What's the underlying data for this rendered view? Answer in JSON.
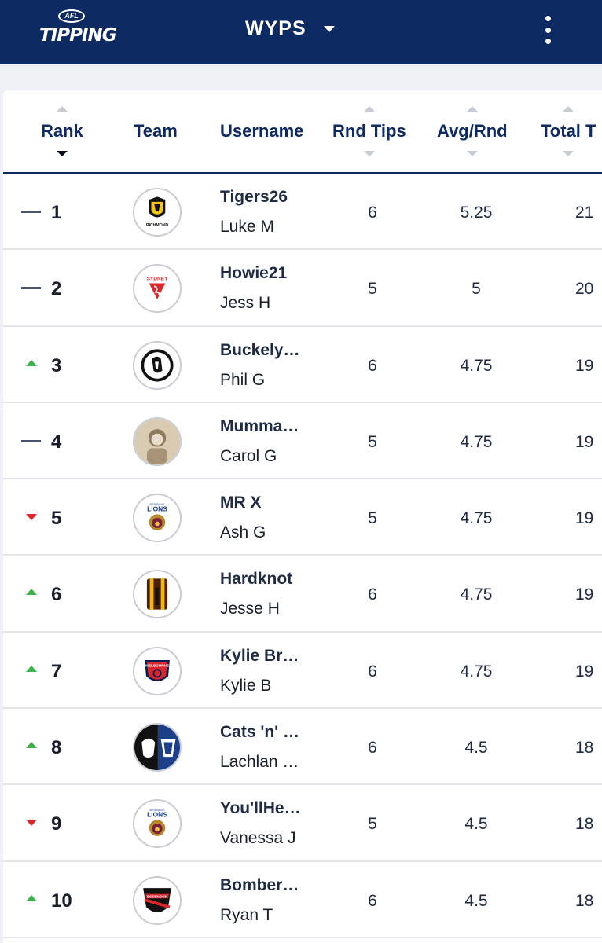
{
  "header": {
    "logo_badge": "AFL",
    "logo_text": "TIPPING",
    "competition": "WYPS"
  },
  "columns": {
    "rank": "Rank",
    "team": "Team",
    "username": "Username",
    "rnd_tips": "Rnd Tips",
    "avg_rnd": "Avg/Rnd",
    "total": "Total T"
  },
  "colors": {
    "navy": "#0d2a63",
    "up": "#3eb24a",
    "down": "#d9262c",
    "same": "#4a5470"
  },
  "rows": [
    {
      "movement": "same",
      "rank": "1",
      "team": "richmond",
      "username": "Tigers26",
      "name": "Luke M",
      "rnd_tips": "6",
      "avg": "5.25",
      "total": "21"
    },
    {
      "movement": "same",
      "rank": "2",
      "team": "sydney",
      "username": "Howie21",
      "name": "Jess H",
      "rnd_tips": "5",
      "avg": "5",
      "total": "20"
    },
    {
      "movement": "up",
      "rank": "3",
      "team": "collingwood",
      "username": "Buckely…",
      "name": "Phil G",
      "rnd_tips": "6",
      "avg": "4.75",
      "total": "19"
    },
    {
      "movement": "same",
      "rank": "4",
      "team": "photo",
      "username": "Mumma…",
      "name": "Carol G",
      "rnd_tips": "5",
      "avg": "4.75",
      "total": "19"
    },
    {
      "movement": "down",
      "rank": "5",
      "team": "brisbane",
      "username": "MR X",
      "name": "Ash G",
      "rnd_tips": "5",
      "avg": "4.75",
      "total": "19"
    },
    {
      "movement": "up",
      "rank": "6",
      "team": "hawthorn",
      "username": "Hardknot",
      "name": "Jesse H",
      "rnd_tips": "6",
      "avg": "4.75",
      "total": "19"
    },
    {
      "movement": "up",
      "rank": "7",
      "team": "melbourne",
      "username": "Kylie Br…",
      "name": "Kylie B",
      "rnd_tips": "6",
      "avg": "4.75",
      "total": "19"
    },
    {
      "movement": "up",
      "rank": "8",
      "team": "geelong-collingwood",
      "username": "Cats 'n' …",
      "name": "Lachlan …",
      "rnd_tips": "6",
      "avg": "4.5",
      "total": "18"
    },
    {
      "movement": "down",
      "rank": "9",
      "team": "brisbane",
      "username": "You'llHe…",
      "name": "Vanessa J",
      "rnd_tips": "5",
      "avg": "4.5",
      "total": "18"
    },
    {
      "movement": "up",
      "rank": "10",
      "team": "essendon",
      "username": "Bomber…",
      "name": "Ryan T",
      "rnd_tips": "6",
      "avg": "4.5",
      "total": "18"
    }
  ],
  "logo_text": {
    "richmond": "RICHMOND",
    "sydney": "SYDNEY",
    "brisbane": "LIONS",
    "brisbane_small": "BRISBANE",
    "melbourne": "MELBOURNE",
    "essendon": "ESSENDON"
  }
}
